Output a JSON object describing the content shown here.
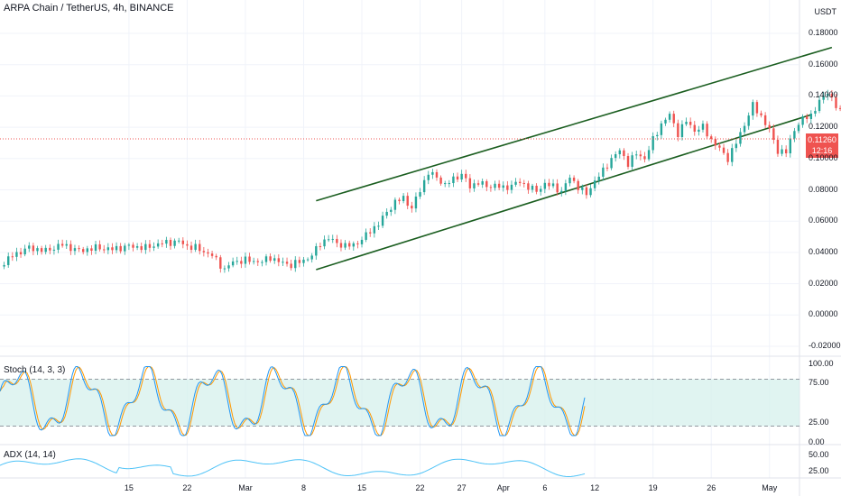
{
  "header": {
    "title": "ARPA Chain / TetherUS, 4h, BINANCE",
    "unit": "USDT"
  },
  "last_price": {
    "value": "0.11260",
    "countdown": "12:16"
  },
  "indicators": {
    "stoch": {
      "label": "Stoch (14, 3, 3)",
      "ticks": [
        "100.00",
        "75.00",
        "25.00",
        "0.00"
      ]
    },
    "adx": {
      "label": "ADX (14, 14)",
      "ticks": [
        "50.00",
        "25.00"
      ]
    }
  },
  "colors": {
    "up": "#26a69a",
    "down": "#ef5350",
    "channel": "#1b5e20",
    "stoch_k": "#2196f3",
    "stoch_d": "#ff9800",
    "stoch_band": "#d6f0ec",
    "adx": "#4fc3f7"
  },
  "chart_data": {
    "type": "candlestick",
    "y_ticks": [
      "0.18000",
      "0.16000",
      "0.14000",
      "0.12000",
      "0.10000",
      "0.08000",
      "0.06000",
      "0.04000",
      "0.02000",
      "0.00000",
      "-0.02000"
    ],
    "ylim": [
      -0.022,
      0.2
    ],
    "x_ticks": [
      "15",
      "22",
      "Mar",
      "8",
      "15",
      "22",
      "27",
      "Apr",
      "6",
      "12",
      "19",
      "26",
      "May"
    ],
    "x_tick_days": [
      0,
      7,
      14,
      21,
      28,
      35,
      40,
      45,
      50,
      56,
      63,
      70,
      77
    ],
    "xlim_days": [
      -15.5,
      80.5
    ],
    "closes": [
      [
        -15.5,
        0.031
      ],
      [
        -14,
        0.038
      ],
      [
        -12,
        0.043
      ],
      [
        -10,
        0.041
      ],
      [
        -8,
        0.045
      ],
      [
        -6,
        0.041
      ],
      [
        -4,
        0.043
      ],
      [
        -2,
        0.042
      ],
      [
        0,
        0.044
      ],
      [
        2,
        0.043
      ],
      [
        4,
        0.046
      ],
      [
        6,
        0.047
      ],
      [
        7,
        0.044
      ],
      [
        8,
        0.043
      ],
      [
        10,
        0.038
      ],
      [
        11.5,
        0.029
      ],
      [
        12.5,
        0.034
      ],
      [
        14,
        0.035
      ],
      [
        16,
        0.034
      ],
      [
        17,
        0.037
      ],
      [
        18,
        0.034
      ],
      [
        19.5,
        0.032
      ],
      [
        21,
        0.035
      ],
      [
        22,
        0.038
      ],
      [
        23,
        0.046
      ],
      [
        24,
        0.049
      ],
      [
        25,
        0.046
      ],
      [
        26,
        0.044
      ],
      [
        27,
        0.045
      ],
      [
        28,
        0.048
      ],
      [
        29,
        0.054
      ],
      [
        30,
        0.058
      ],
      [
        31,
        0.066
      ],
      [
        32,
        0.072
      ],
      [
        33,
        0.075
      ],
      [
        34,
        0.068
      ],
      [
        35,
        0.08
      ],
      [
        36,
        0.091
      ],
      [
        37,
        0.088
      ],
      [
        38,
        0.083
      ],
      [
        39,
        0.087
      ],
      [
        40,
        0.09
      ],
      [
        41,
        0.082
      ],
      [
        42,
        0.085
      ],
      [
        43,
        0.082
      ],
      [
        44,
        0.083
      ],
      [
        45,
        0.081
      ],
      [
        46,
        0.083
      ],
      [
        47,
        0.085
      ],
      [
        48,
        0.082
      ],
      [
        49,
        0.079
      ],
      [
        50,
        0.084
      ],
      [
        51,
        0.082
      ],
      [
        52,
        0.079
      ],
      [
        53,
        0.088
      ],
      [
        54,
        0.082
      ],
      [
        55,
        0.077
      ],
      [
        56,
        0.086
      ],
      [
        57,
        0.092
      ],
      [
        58,
        0.1
      ],
      [
        59,
        0.105
      ],
      [
        60,
        0.097
      ],
      [
        61,
        0.103
      ],
      [
        62,
        0.1
      ],
      [
        63,
        0.112
      ],
      [
        64,
        0.122
      ],
      [
        65,
        0.128
      ],
      [
        66,
        0.116
      ],
      [
        67,
        0.124
      ],
      [
        68,
        0.118
      ],
      [
        69,
        0.12
      ],
      [
        70,
        0.112
      ],
      [
        71,
        0.106
      ],
      [
        72,
        0.1
      ],
      [
        73,
        0.11
      ],
      [
        74,
        0.122
      ],
      [
        75,
        0.134
      ],
      [
        76,
        0.127
      ],
      [
        77,
        0.118
      ],
      [
        78,
        0.105
      ],
      [
        79,
        0.104
      ],
      [
        80,
        0.119
      ],
      [
        81,
        0.125
      ],
      [
        82,
        0.128
      ],
      [
        83,
        0.136
      ],
      [
        84,
        0.143
      ],
      [
        85,
        0.133
      ],
      [
        86,
        0.128
      ],
      [
        87,
        0.127
      ],
      [
        88,
        0.13
      ],
      [
        89,
        0.122
      ],
      [
        90,
        0.117
      ],
      [
        91,
        0.1126
      ]
    ],
    "channel_upper": [
      [
        22.5,
        0.073
      ],
      [
        84.5,
        0.171
      ]
    ],
    "channel_lower": [
      [
        22.5,
        0.029
      ],
      [
        82,
        0.128
      ]
    ]
  }
}
